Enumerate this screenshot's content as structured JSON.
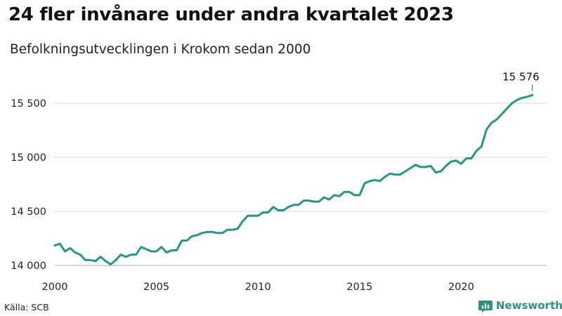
{
  "title": "24 fler invånare under andra kvartalet 2023",
  "subtitle": "Befolkningsutvecklingen i Krokom sedan 2000",
  "source": "Källa: SCB",
  "brand": {
    "name": "Newsworthy",
    "icon": "newsworthy-logo-icon",
    "color": "#2f8f80"
  },
  "chart_data": {
    "type": "line",
    "title": "24 fler invånare under andra kvartalet 2023",
    "xlabel": "",
    "ylabel": "",
    "xlim": [
      2000,
      2024.2
    ],
    "ylim": [
      14000,
      15576
    ],
    "xticks": [
      2000,
      2005,
      2010,
      2015,
      2020
    ],
    "xtick_labels": [
      "2000",
      "2005",
      "2010",
      "2015",
      "2020"
    ],
    "yticks": [
      14000,
      14500,
      15000,
      15500
    ],
    "ytick_labels": [
      "14 000",
      "14 500",
      "15 000",
      "15 500"
    ],
    "grid": "horizontal",
    "line_color": "#2a9482",
    "annotation": {
      "label": "15 576",
      "x": 2023.5,
      "y": 15576
    },
    "series": [
      {
        "name": "",
        "x": [
          2000.0,
          2000.25,
          2000.5,
          2000.75,
          2001.0,
          2001.25,
          2001.5,
          2001.75,
          2002.0,
          2002.25,
          2002.5,
          2002.75,
          2003.0,
          2003.25,
          2003.5,
          2003.75,
          2004.0,
          2004.25,
          2004.5,
          2004.75,
          2005.0,
          2005.25,
          2005.5,
          2005.75,
          2006.0,
          2006.25,
          2006.5,
          2006.75,
          2007.0,
          2007.25,
          2007.5,
          2007.75,
          2008.0,
          2008.25,
          2008.5,
          2008.75,
          2009.0,
          2009.25,
          2009.5,
          2009.75,
          2010.0,
          2010.25,
          2010.5,
          2010.75,
          2011.0,
          2011.25,
          2011.5,
          2011.75,
          2012.0,
          2012.25,
          2012.5,
          2012.75,
          2013.0,
          2013.25,
          2013.5,
          2013.75,
          2014.0,
          2014.25,
          2014.5,
          2014.75,
          2015.0,
          2015.25,
          2015.5,
          2015.75,
          2016.0,
          2016.25,
          2016.5,
          2016.75,
          2017.0,
          2017.25,
          2017.5,
          2017.75,
          2018.0,
          2018.25,
          2018.5,
          2018.75,
          2019.0,
          2019.25,
          2019.5,
          2019.75,
          2020.0,
          2020.25,
          2020.5,
          2020.75,
          2021.0,
          2021.25,
          2021.5,
          2021.75,
          2022.0,
          2022.25,
          2022.5,
          2022.75,
          2023.0,
          2023.25,
          2023.5
        ],
        "values": [
          14185,
          14200,
          14130,
          14160,
          14120,
          14100,
          14050,
          14050,
          14040,
          14080,
          14040,
          14010,
          14050,
          14100,
          14080,
          14100,
          14100,
          14170,
          14150,
          14130,
          14130,
          14170,
          14120,
          14140,
          14140,
          14230,
          14230,
          14270,
          14280,
          14300,
          14310,
          14310,
          14300,
          14300,
          14330,
          14330,
          14340,
          14410,
          14460,
          14460,
          14460,
          14490,
          14490,
          14540,
          14510,
          14510,
          14540,
          14560,
          14560,
          14600,
          14600,
          14590,
          14590,
          14630,
          14610,
          14650,
          14640,
          14680,
          14680,
          14650,
          14650,
          14760,
          14780,
          14790,
          14780,
          14820,
          14850,
          14840,
          14840,
          14870,
          14900,
          14930,
          14910,
          14910,
          14920,
          14860,
          14870,
          14920,
          14960,
          14970,
          14940,
          14990,
          14990,
          15060,
          15100,
          15260,
          15320,
          15350,
          15400,
          15450,
          15500,
          15530,
          15550,
          15560,
          15576
        ]
      }
    ]
  }
}
